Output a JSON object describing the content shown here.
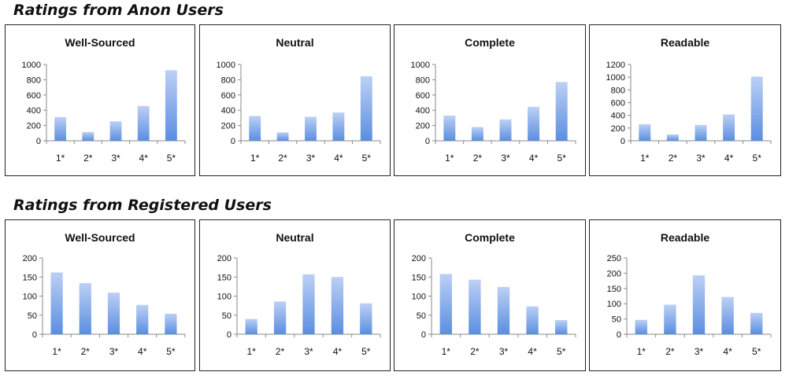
{
  "sections": [
    {
      "title": "Ratings from Anon Users",
      "charts": [
        {
          "type": "bar",
          "title": "Well-Sourced",
          "categories": [
            "1*",
            "2*",
            "3*",
            "4*",
            "5*"
          ],
          "values": [
            310,
            115,
            255,
            455,
            925
          ],
          "ylim": [
            0,
            1000
          ],
          "yticks": [
            0,
            200,
            400,
            600,
            800,
            1000
          ]
        },
        {
          "type": "bar",
          "title": "Neutral",
          "categories": [
            "1*",
            "2*",
            "3*",
            "4*",
            "5*"
          ],
          "values": [
            325,
            110,
            315,
            370,
            845
          ],
          "ylim": [
            0,
            1000
          ],
          "yticks": [
            0,
            200,
            400,
            600,
            800,
            1000
          ]
        },
        {
          "type": "bar",
          "title": "Complete",
          "categories": [
            "1*",
            "2*",
            "3*",
            "4*",
            "5*"
          ],
          "values": [
            330,
            180,
            280,
            445,
            770
          ],
          "ylim": [
            0,
            1000
          ],
          "yticks": [
            0,
            200,
            400,
            600,
            800,
            1000
          ]
        },
        {
          "type": "bar",
          "title": "Readable",
          "categories": [
            "1*",
            "2*",
            "3*",
            "4*",
            "5*"
          ],
          "values": [
            260,
            100,
            250,
            415,
            1010
          ],
          "ylim": [
            0,
            1200
          ],
          "yticks": [
            0,
            200,
            400,
            600,
            800,
            1000,
            1200
          ]
        }
      ]
    },
    {
      "title": "Ratings from Registered Users",
      "charts": [
        {
          "type": "bar",
          "title": "Well-Sourced",
          "categories": [
            "1*",
            "2*",
            "3*",
            "4*",
            "5*"
          ],
          "values": [
            162,
            134,
            109,
            77,
            54
          ],
          "ylim": [
            0,
            200
          ],
          "yticks": [
            0,
            50,
            100,
            150,
            200
          ]
        },
        {
          "type": "bar",
          "title": "Neutral",
          "categories": [
            "1*",
            "2*",
            "3*",
            "4*",
            "5*"
          ],
          "values": [
            40,
            86,
            157,
            150,
            81
          ],
          "ylim": [
            0,
            200
          ],
          "yticks": [
            0,
            50,
            100,
            150,
            200
          ]
        },
        {
          "type": "bar",
          "title": "Complete",
          "categories": [
            "1*",
            "2*",
            "3*",
            "4*",
            "5*"
          ],
          "values": [
            158,
            143,
            124,
            73,
            37
          ],
          "ylim": [
            0,
            200
          ],
          "yticks": [
            0,
            50,
            100,
            150,
            200
          ]
        },
        {
          "type": "bar",
          "title": "Readable",
          "categories": [
            "1*",
            "2*",
            "3*",
            "4*",
            "5*"
          ],
          "values": [
            47,
            97,
            193,
            122,
            70
          ],
          "ylim": [
            0,
            250
          ],
          "yticks": [
            0,
            50,
            100,
            150,
            200,
            250
          ]
        }
      ]
    }
  ],
  "chart_data": [
    {
      "type": "bar",
      "title": "Well-Sourced",
      "categories": [
        "1*",
        "2*",
        "3*",
        "4*",
        "5*"
      ],
      "values": [
        310,
        115,
        255,
        455,
        925
      ],
      "ylim": [
        0,
        1000
      ]
    },
    {
      "type": "bar",
      "title": "Neutral",
      "categories": [
        "1*",
        "2*",
        "3*",
        "4*",
        "5*"
      ],
      "values": [
        325,
        110,
        315,
        370,
        845
      ],
      "ylim": [
        0,
        1000
      ]
    },
    {
      "type": "bar",
      "title": "Complete",
      "categories": [
        "1*",
        "2*",
        "3*",
        "4*",
        "5*"
      ],
      "values": [
        330,
        180,
        280,
        445,
        770
      ],
      "ylim": [
        0,
        1000
      ]
    },
    {
      "type": "bar",
      "title": "Readable",
      "categories": [
        "1*",
        "2*",
        "3*",
        "4*",
        "5*"
      ],
      "values": [
        260,
        100,
        250,
        415,
        1010
      ],
      "ylim": [
        0,
        1200
      ]
    },
    {
      "type": "bar",
      "title": "Well-Sourced",
      "categories": [
        "1*",
        "2*",
        "3*",
        "4*",
        "5*"
      ],
      "values": [
        162,
        134,
        109,
        77,
        54
      ],
      "ylim": [
        0,
        200
      ]
    },
    {
      "type": "bar",
      "title": "Neutral",
      "categories": [
        "1*",
        "2*",
        "3*",
        "4*",
        "5*"
      ],
      "values": [
        40,
        86,
        157,
        150,
        81
      ],
      "ylim": [
        0,
        200
      ]
    },
    {
      "type": "bar",
      "title": "Complete",
      "categories": [
        "1*",
        "2*",
        "3*",
        "4*",
        "5*"
      ],
      "values": [
        158,
        143,
        124,
        73,
        37
      ],
      "ylim": [
        0,
        200
      ]
    },
    {
      "type": "bar",
      "title": "Readable",
      "categories": [
        "1*",
        "2*",
        "3*",
        "4*",
        "5*"
      ],
      "values": [
        47,
        97,
        193,
        122,
        70
      ],
      "ylim": [
        0,
        250
      ]
    }
  ],
  "colors": {
    "bar_top": "#bcd0f5",
    "bar_bottom": "#5b8ee0",
    "axis": "#8a8a8a",
    "border": "#222222"
  }
}
